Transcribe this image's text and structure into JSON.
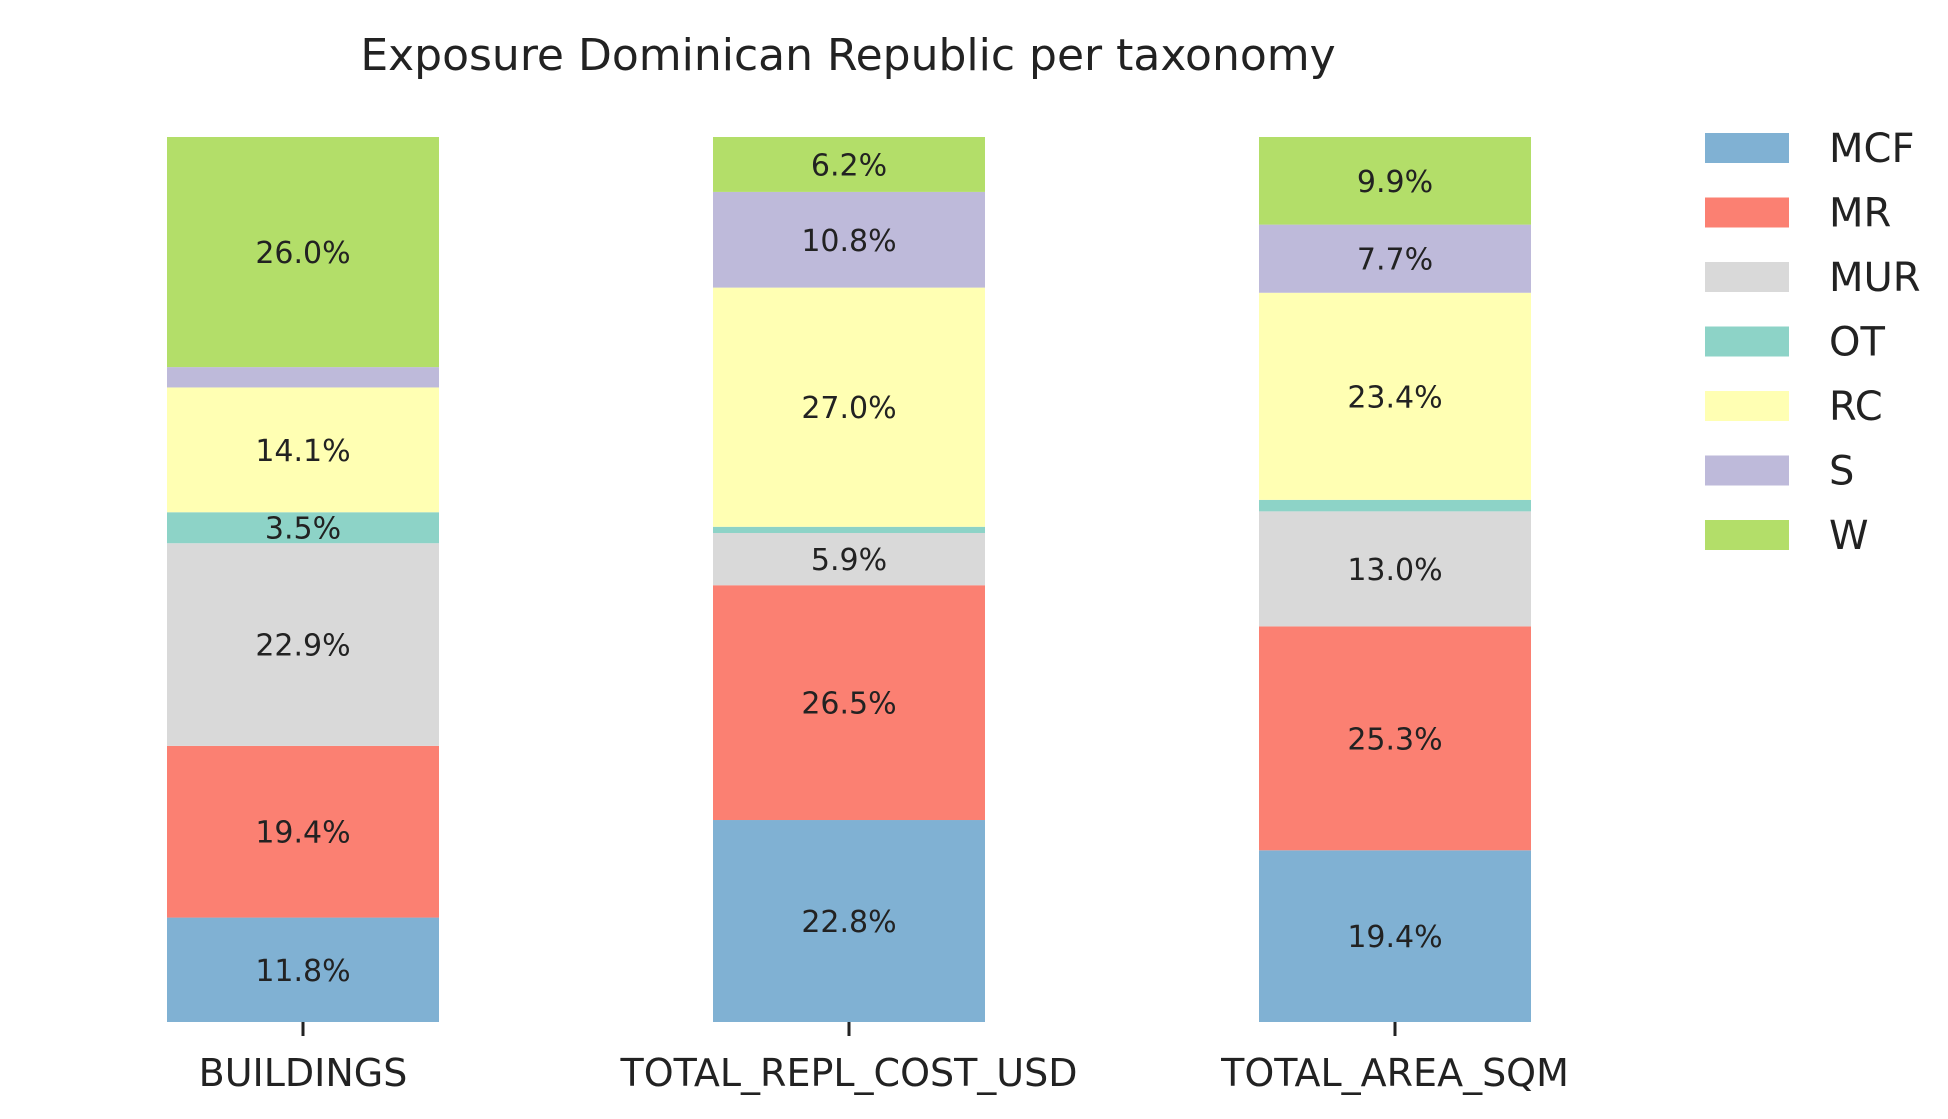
{
  "chart_data": {
    "type": "bar",
    "stacked": true,
    "normalized": true,
    "title": "Exposure Dominican Republic per taxonomy",
    "xlabel": "",
    "ylabel": "",
    "ylim": [
      0,
      100
    ],
    "grid": false,
    "legend": "right",
    "categories": [
      "BUILDINGS",
      "TOTAL_REPL_COST_USD",
      "TOTAL_AREA_SQM"
    ],
    "series": [
      {
        "name": "MCF",
        "color": "#80b1d3",
        "values": [
          11.8,
          22.8,
          19.4
        ],
        "labels": [
          "11.8%",
          "22.8%",
          "19.4%"
        ]
      },
      {
        "name": "MR",
        "color": "#fb8072",
        "values": [
          19.4,
          26.5,
          25.3
        ],
        "labels": [
          "19.4%",
          "26.5%",
          "25.3%"
        ]
      },
      {
        "name": "MUR",
        "color": "#d9d9d9",
        "values": [
          22.9,
          5.9,
          13.0
        ],
        "labels": [
          "22.9%",
          "5.9%",
          "13.0%"
        ]
      },
      {
        "name": "OT",
        "color": "#8dd3c7",
        "values": [
          3.5,
          0.7,
          1.3
        ],
        "labels": [
          "3.5%",
          "",
          ""
        ]
      },
      {
        "name": "RC",
        "color": "#ffffb3",
        "values": [
          14.1,
          27.0,
          23.4
        ],
        "labels": [
          "14.1%",
          "27.0%",
          "23.4%"
        ]
      },
      {
        "name": "S",
        "color": "#bebada",
        "values": [
          2.3,
          10.8,
          7.7
        ],
        "labels": [
          "",
          "10.8%",
          "7.7%"
        ]
      },
      {
        "name": "W",
        "color": "#b3de69",
        "values": [
          26.0,
          6.2,
          9.9
        ],
        "labels": [
          "26.0%",
          "6.2%",
          "9.9%"
        ]
      }
    ]
  }
}
